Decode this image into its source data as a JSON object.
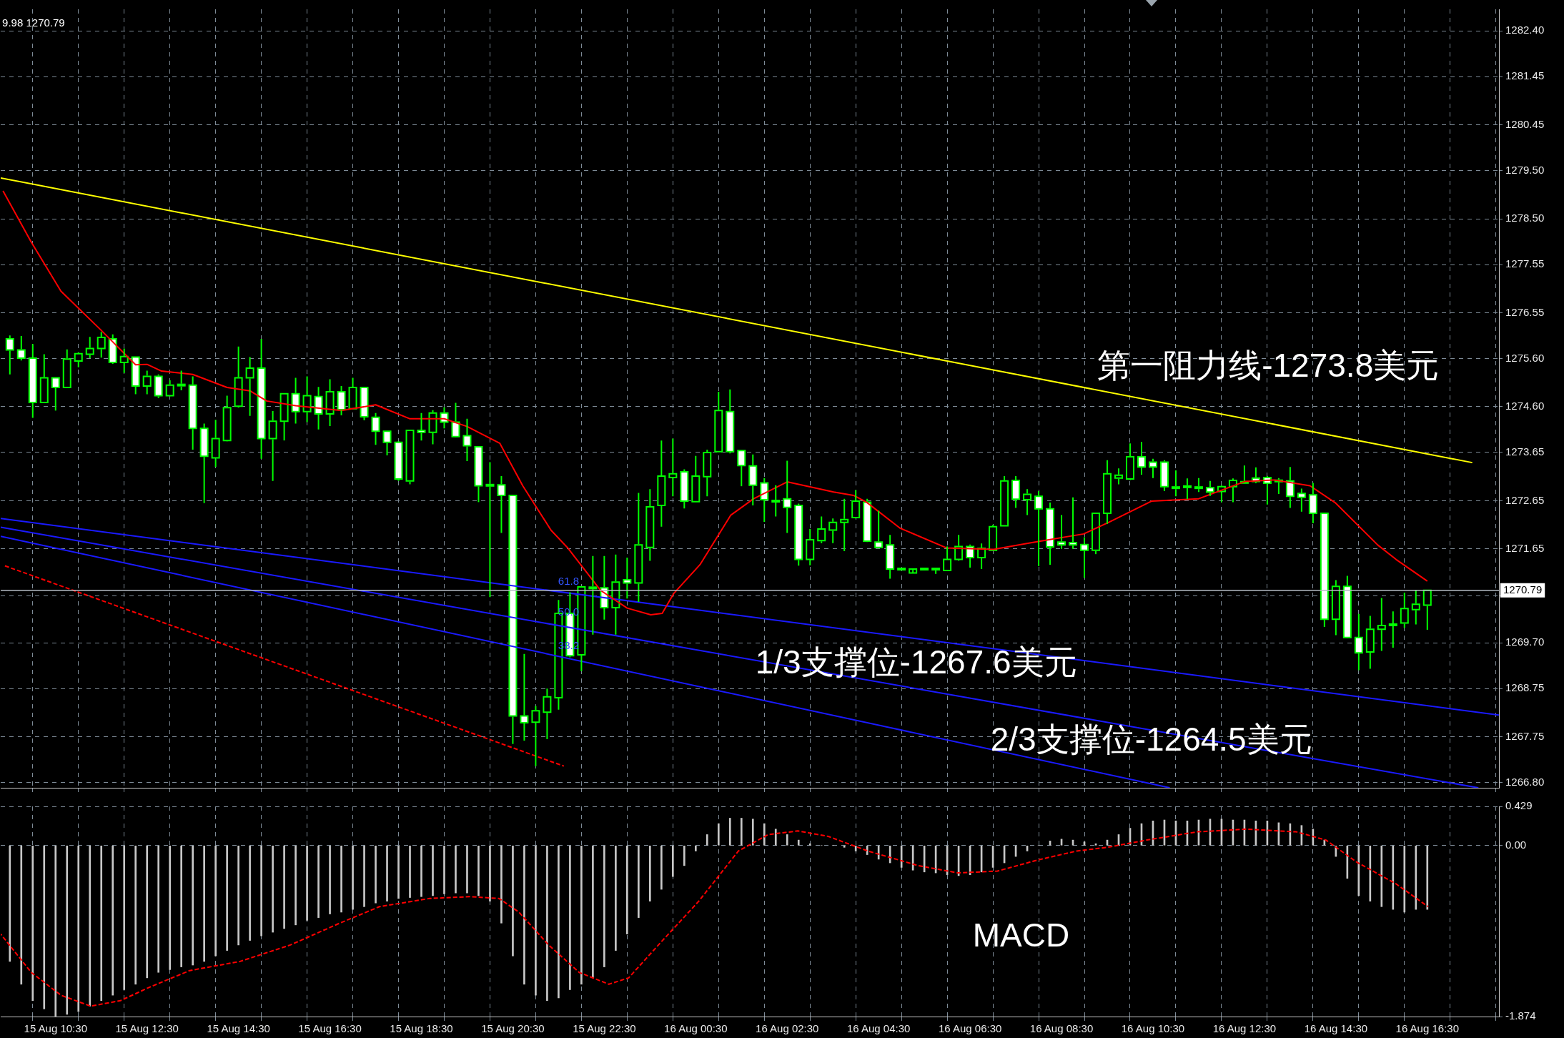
{
  "chart_data": [
    {
      "type": "candlestick",
      "color": "#00ff00",
      "marker": "none",
      "grid": true,
      "tick_labels": "y",
      "x": [
        "--08-15T09:30",
        "--08-15T09:45",
        "--08-15T10:00",
        "--08-15T10:15",
        "--08-15T10:30",
        "--08-15T10:45",
        "--08-15T11:00",
        "--08-15T11:15",
        "--08-15T11:30",
        "--08-15T11:45",
        "--08-15T12:00",
        "--08-15T12:15",
        "--08-15T12:30",
        "--08-15T12:45",
        "--08-15T13:00",
        "--08-15T13:15",
        "--08-15T13:30",
        "--08-15T13:45",
        "--08-15T14:00",
        "--08-15T14:15",
        "--08-15T14:30",
        "--08-15T14:45",
        "--08-15T15:00",
        "--08-15T15:15",
        "--08-15T15:30",
        "--08-15T15:45",
        "--08-15T16:00",
        "--08-15T16:15",
        "--08-15T16:30",
        "--08-15T16:45",
        "--08-15T17:00",
        "--08-15T17:15",
        "--08-15T17:30",
        "--08-15T17:45",
        "--08-15T18:00",
        "--08-15T18:15",
        "--08-15T18:30",
        "--08-15T18:45",
        "--08-15T19:00",
        "--08-15T19:15",
        "--08-15T19:30",
        "--08-15T19:45",
        "--08-15T20:00",
        "--08-15T20:15",
        "--08-15T20:30",
        "--08-15T20:45",
        "--08-15T21:00",
        "--08-15T21:15",
        "--08-15T21:30",
        "--08-15T21:45",
        "--08-15T22:00",
        "--08-15T22:15",
        "--08-15T22:30",
        "--08-15T22:45",
        "--08-15T23:00",
        "--08-15T23:15",
        "--08-15T23:30",
        "--08-15T23:45",
        "--08-16T00:00",
        "--08-16T00:15",
        "--08-16T00:30",
        "--08-16T00:45",
        "--08-16T01:00",
        "--08-16T01:15",
        "--08-16T01:30",
        "--08-16T01:45",
        "--08-16T02:00",
        "--08-16T02:15",
        "--08-16T02:30",
        "--08-16T02:45",
        "--08-16T03:00",
        "--08-16T03:15",
        "--08-16T03:30",
        "--08-16T03:45",
        "--08-16T04:00",
        "--08-16T04:15",
        "--08-16T04:30",
        "--08-16T04:45",
        "--08-16T05:00",
        "--08-16T05:15",
        "--08-16T05:30",
        "--08-16T05:45",
        "--08-16T06:00",
        "--08-16T06:15",
        "--08-16T06:30",
        "--08-16T06:45",
        "--08-16T07:00",
        "--08-16T07:15",
        "--08-16T07:30",
        "--08-16T07:45",
        "--08-16T08:00",
        "--08-16T08:15",
        "--08-16T08:30",
        "--08-16T08:45",
        "--08-16T09:00",
        "--08-16T09:15",
        "--08-16T09:30",
        "--08-16T09:45",
        "--08-16T10:00",
        "--08-16T10:15",
        "--08-16T10:30",
        "--08-16T10:45",
        "--08-16T11:00",
        "--08-16T11:15",
        "--08-16T11:30",
        "--08-16T11:45",
        "--08-16T12:00",
        "--08-16T12:15",
        "--08-16T12:30",
        "--08-16T12:45",
        "--08-16T13:00",
        "--08-16T13:15",
        "--08-16T13:30",
        "--08-16T13:45",
        "--08-16T14:00",
        "--08-16T14:15",
        "--08-16T14:30",
        "--08-16T14:45",
        "--08-16T15:00",
        "--08-16T15:15",
        "--08-16T15:30",
        "--08-16T15:45",
        "--08-16T16:00",
        "--08-16T16:15",
        "--08-16T16:30"
      ],
      "ohlc": [
        [
          1276.01,
          1276.08,
          1275.27,
          1275.78
        ],
        [
          1275.78,
          1276.07,
          1275.56,
          1275.61
        ],
        [
          1275.61,
          1275.9,
          1274.37,
          1274.69
        ],
        [
          1274.69,
          1275.69,
          1274.69,
          1275.2
        ],
        [
          1275.2,
          1275.2,
          1274.52,
          1275.0
        ],
        [
          1275.0,
          1275.79,
          1275.0,
          1275.59
        ],
        [
          1275.55,
          1275.73,
          1275.42,
          1275.7
        ],
        [
          1275.69,
          1276.05,
          1275.61,
          1275.81
        ],
        [
          1275.81,
          1276.15,
          1275.62,
          1276.04
        ],
        [
          1276.01,
          1276.1,
          1275.49,
          1275.52
        ],
        [
          1275.52,
          1275.81,
          1275.3,
          1275.64
        ],
        [
          1275.63,
          1275.63,
          1274.86,
          1275.03
        ],
        [
          1275.03,
          1275.35,
          1274.86,
          1275.23
        ],
        [
          1275.23,
          1275.27,
          1274.78,
          1274.83
        ],
        [
          1274.83,
          1275.15,
          1274.81,
          1275.05
        ],
        [
          1275.05,
          1275.35,
          1274.94,
          1275.05
        ],
        [
          1275.05,
          1275.23,
          1273.71,
          1274.15
        ],
        [
          1274.15,
          1274.25,
          1272.6,
          1273.57
        ],
        [
          1273.54,
          1274.33,
          1273.35,
          1273.94
        ],
        [
          1273.9,
          1274.83,
          1273.88,
          1274.58
        ],
        [
          1274.61,
          1275.85,
          1274.58,
          1275.2
        ],
        [
          1275.2,
          1275.63,
          1274.41,
          1275.4
        ],
        [
          1275.4,
          1276.01,
          1273.52,
          1273.94
        ],
        [
          1273.94,
          1274.51,
          1273.06,
          1274.3
        ],
        [
          1274.3,
          1274.87,
          1273.9,
          1274.87
        ],
        [
          1274.87,
          1275.2,
          1274.25,
          1274.5
        ],
        [
          1274.5,
          1275.23,
          1274.28,
          1274.83
        ],
        [
          1274.81,
          1275.01,
          1274.13,
          1274.45
        ],
        [
          1274.45,
          1275.17,
          1274.2,
          1274.91
        ],
        [
          1274.91,
          1275.03,
          1274.42,
          1274.54
        ],
        [
          1274.56,
          1275.2,
          1274.56,
          1275.0
        ],
        [
          1275.0,
          1275.0,
          1274.32,
          1274.39
        ],
        [
          1274.38,
          1274.47,
          1273.81,
          1274.09
        ],
        [
          1274.09,
          1274.09,
          1273.59,
          1273.86
        ],
        [
          1273.86,
          1273.89,
          1273.06,
          1273.1
        ],
        [
          1273.06,
          1274.11,
          1272.99,
          1274.11
        ],
        [
          1274.11,
          1274.47,
          1273.9,
          1274.07
        ],
        [
          1274.07,
          1274.53,
          1273.82,
          1274.47
        ],
        [
          1274.47,
          1274.59,
          1274.15,
          1274.28
        ],
        [
          1274.28,
          1274.68,
          1273.97,
          1273.98
        ],
        [
          1274.0,
          1274.35,
          1273.47,
          1273.79
        ],
        [
          1273.77,
          1273.77,
          1272.62,
          1272.96
        ],
        [
          1272.97,
          1273.45,
          1270.65,
          1272.97
        ],
        [
          1272.98,
          1273.16,
          1271.98,
          1272.76
        ],
        [
          1272.76,
          1272.76,
          1267.6,
          1268.18
        ],
        [
          1268.18,
          1269.47,
          1267.67,
          1268.04
        ],
        [
          1268.05,
          1268.39,
          1267.14,
          1268.29
        ],
        [
          1268.26,
          1268.75,
          1267.7,
          1268.58
        ],
        [
          1268.56,
          1270.59,
          1268.31,
          1270.31
        ],
        [
          1270.31,
          1270.75,
          1269.4,
          1269.43
        ],
        [
          1269.45,
          1270.86,
          1269.11,
          1270.86
        ],
        [
          1270.84,
          1271.5,
          1269.87,
          1270.84
        ],
        [
          1270.84,
          1271.5,
          1270.18,
          1270.43
        ],
        [
          1270.43,
          1271.53,
          1269.87,
          1270.96
        ],
        [
          1271.01,
          1271.47,
          1270.62,
          1270.94
        ],
        [
          1270.94,
          1272.81,
          1270.55,
          1271.73
        ],
        [
          1271.68,
          1272.89,
          1271.4,
          1272.52
        ],
        [
          1272.55,
          1273.9,
          1272.11,
          1273.16
        ],
        [
          1273.13,
          1273.94,
          1272.74,
          1273.21
        ],
        [
          1273.25,
          1273.3,
          1272.49,
          1272.64
        ],
        [
          1272.63,
          1273.58,
          1272.63,
          1273.16
        ],
        [
          1273.15,
          1273.71,
          1272.74,
          1273.65
        ],
        [
          1273.67,
          1274.91,
          1273.67,
          1274.52
        ],
        [
          1274.5,
          1274.96,
          1273.63,
          1273.67
        ],
        [
          1273.69,
          1273.69,
          1272.95,
          1273.38
        ],
        [
          1273.37,
          1273.61,
          1272.55,
          1272.97
        ],
        [
          1273.02,
          1273.12,
          1272.21,
          1272.67
        ],
        [
          1272.64,
          1272.97,
          1272.32,
          1272.64
        ],
        [
          1272.69,
          1273.48,
          1271.98,
          1272.51
        ],
        [
          1272.55,
          1272.59,
          1271.3,
          1271.43
        ],
        [
          1271.43,
          1272.06,
          1271.31,
          1271.84
        ],
        [
          1271.82,
          1272.32,
          1271.77,
          1272.06
        ],
        [
          1272.04,
          1272.28,
          1271.77,
          1272.2
        ],
        [
          1272.2,
          1272.69,
          1271.6,
          1272.26
        ],
        [
          1272.3,
          1272.87,
          1272.28,
          1272.64
        ],
        [
          1272.62,
          1272.69,
          1271.79,
          1271.81
        ],
        [
          1271.79,
          1272.44,
          1271.67,
          1271.68
        ],
        [
          1271.73,
          1271.94,
          1271.03,
          1271.23
        ],
        [
          1271.23,
          1271.23,
          1271.23,
          1271.23
        ],
        [
          1271.15,
          1271.23,
          1271.15,
          1271.23
        ],
        [
          1271.23,
          1271.23,
          1271.23,
          1271.23
        ],
        [
          1271.23,
          1271.23,
          1271.13,
          1271.23
        ],
        [
          1271.2,
          1271.7,
          1271.2,
          1271.43
        ],
        [
          1271.43,
          1271.94,
          1271.4,
          1271.7
        ],
        [
          1271.7,
          1271.74,
          1271.26,
          1271.47
        ],
        [
          1271.47,
          1271.76,
          1271.23,
          1271.66
        ],
        [
          1271.62,
          1272.15,
          1271.6,
          1272.11
        ],
        [
          1272.13,
          1273.16,
          1272.13,
          1273.06
        ],
        [
          1273.07,
          1273.16,
          1272.5,
          1272.68
        ],
        [
          1272.67,
          1272.89,
          1272.35,
          1272.78
        ],
        [
          1272.74,
          1272.85,
          1271.29,
          1272.48
        ],
        [
          1272.48,
          1272.61,
          1271.32,
          1271.69
        ],
        [
          1271.79,
          1272.35,
          1271.65,
          1271.73
        ],
        [
          1271.78,
          1272.72,
          1271.65,
          1271.73
        ],
        [
          1271.74,
          1271.89,
          1271.05,
          1271.62
        ],
        [
          1271.62,
          1272.39,
          1271.54,
          1272.39
        ],
        [
          1272.39,
          1273.49,
          1272.17,
          1273.21
        ],
        [
          1273.12,
          1273.32,
          1272.99,
          1273.18
        ],
        [
          1273.1,
          1273.84,
          1273.08,
          1273.56
        ],
        [
          1273.56,
          1273.87,
          1273.19,
          1273.35
        ],
        [
          1273.45,
          1273.52,
          1273.12,
          1273.35
        ],
        [
          1273.45,
          1273.49,
          1272.85,
          1272.94
        ],
        [
          1272.92,
          1273.28,
          1272.74,
          1272.92
        ],
        [
          1272.94,
          1273.11,
          1272.68,
          1272.94
        ],
        [
          1272.92,
          1273.12,
          1272.83,
          1272.92
        ],
        [
          1272.92,
          1273.06,
          1272.75,
          1272.83
        ],
        [
          1272.84,
          1272.97,
          1272.62,
          1272.94
        ],
        [
          1272.94,
          1273.11,
          1272.62,
          1273.07
        ],
        [
          1273.03,
          1273.38,
          1273.01,
          1273.03
        ],
        [
          1273.12,
          1273.34,
          1273.01,
          1273.05
        ],
        [
          1273.13,
          1273.16,
          1272.57,
          1273.01
        ],
        [
          1273.06,
          1273.12,
          1272.79,
          1273.06
        ],
        [
          1273.06,
          1273.35,
          1272.5,
          1272.74
        ],
        [
          1272.8,
          1272.9,
          1272.42,
          1272.72
        ],
        [
          1272.77,
          1273.02,
          1272.18,
          1272.39
        ],
        [
          1272.39,
          1272.39,
          1270.03,
          1270.19
        ],
        [
          1270.19,
          1271.0,
          1269.86,
          1270.87
        ],
        [
          1270.87,
          1271.09,
          1269.79,
          1269.81
        ],
        [
          1269.81,
          1270.3,
          1269.13,
          1269.49
        ],
        [
          1269.51,
          1270.26,
          1269.16,
          1269.98
        ],
        [
          1269.98,
          1270.63,
          1269.53,
          1270.06
        ],
        [
          1270.06,
          1270.35,
          1269.6,
          1270.09
        ],
        [
          1270.11,
          1270.74,
          1270.01,
          1270.41
        ],
        [
          1270.39,
          1270.79,
          1270.08,
          1270.5
        ],
        [
          1270.48,
          1270.79,
          1269.97,
          1270.79
        ]
      ],
      "series": [
        {
          "type": "line",
          "color": "#ff0000",
          "x": [
            "--08-15T09:21",
            "--08-15T09:58",
            "--08-15T10:37",
            "--08-15T11:29",
            "--08-15T12:15",
            "--08-15T12:30",
            "--08-15T12:49",
            "--08-15T13:30",
            "--08-15T14:15",
            "--08-15T14:45",
            "--08-15T15:07",
            "--08-15T15:45",
            "--08-15T16:45",
            "--08-15T17:30",
            "--08-15T18:15",
            "--08-15T19:00",
            "--08-15T19:30",
            "--08-15T20:13",
            "--08-15T20:43",
            "--08-15T21:20",
            "--08-15T21:42",
            "--08-15T22:25",
            "--08-15T23:00",
            "--08-15T23:31",
            "--08-15T23:46",
            "--08-16T00:01",
            "--08-16T00:36",
            "--08-16T01:16",
            "--08-16T01:46",
            "--08-16T02:30",
            "--08-16T03:31",
            "--08-16T03:57",
            "--08-16T04:14",
            "--08-16T04:58",
            "--08-16T05:59",
            "--08-16T07:01",
            "--08-16T07:58",
            "--08-16T08:59",
            "--08-16T09:32",
            "--08-16T10:28",
            "--08-16T11:30",
            "--08-16T12:31",
            "--08-16T13:09",
            "--08-16T13:56",
            "--08-16T14:29",
            "--08-16T15:25",
            "--08-16T15:49",
            "--08-16T16:30"
          ],
          "values": [
            1279.08,
            1278.02,
            1277.0,
            1276.2,
            1275.47,
            1275.48,
            1275.34,
            1275.27,
            1275.0,
            1274.93,
            1274.72,
            1274.62,
            1274.52,
            1274.64,
            1274.35,
            1274.35,
            1274.19,
            1273.84,
            1272.96,
            1272.04,
            1271.67,
            1270.79,
            1270.42,
            1270.28,
            1270.31,
            1270.72,
            1271.33,
            1272.35,
            1272.69,
            1273.04,
            1272.83,
            1272.76,
            1272.62,
            1272.08,
            1271.67,
            1271.64,
            1271.8,
            1271.96,
            1272.2,
            1272.64,
            1272.69,
            1273.05,
            1273.08,
            1272.96,
            1272.61,
            1271.73,
            1271.43,
            1270.98
          ]
        },
        {
          "type": "line",
          "color": "#ffff00",
          "x": [
            "--08-15T09:18",
            "--08-16T17:29"
          ],
          "values": [
            1279.35,
            1273.44
          ]
        },
        {
          "type": "line",
          "color": "#1a1aff",
          "x": [
            "--08-15T09:18",
            "--08-16T18:04"
          ],
          "values": [
            1272.28,
            1268.2
          ]
        },
        {
          "type": "line",
          "color": "#1a1aff",
          "x": [
            "--08-15T09:18",
            "--08-16T17:37"
          ],
          "values": [
            1272.1,
            1266.69
          ]
        },
        {
          "type": "line",
          "color": "#1a1aff",
          "x": [
            "--08-15T09:18",
            "--08-16T10:52"
          ],
          "values": [
            1271.91,
            1266.69
          ]
        },
        {
          "type": "line",
          "color": "#ff0000",
          "line_style": "dashed",
          "x": [
            "--08-15T09:23",
            "--08-15T21:37"
          ],
          "values": [
            1271.3,
            1267.14
          ]
        }
      ],
      "xlim": [
        "--08-15T09:18",
        "--08-16T18:04"
      ],
      "xticks": [
        {
          "value": "--08-15T10:30",
          "label": "15 Aug 10:30"
        },
        {
          "value": "--08-15T12:30",
          "label": "15 Aug 12:30"
        },
        {
          "value": "--08-15T14:30",
          "label": "15 Aug 14:30"
        },
        {
          "value": "--08-15T16:30",
          "label": "15 Aug 16:30"
        },
        {
          "value": "--08-15T18:30",
          "label": "15 Aug 18:30"
        },
        {
          "value": "--08-15T20:30",
          "label": "15 Aug 20:30"
        },
        {
          "value": "--08-15T22:30",
          "label": "15 Aug 22:30"
        },
        {
          "value": "--08-16T00:30",
          "label": "16 Aug 00:30"
        },
        {
          "value": "--08-16T02:30",
          "label": "16 Aug 02:30"
        },
        {
          "value": "--08-16T04:30",
          "label": "16 Aug 04:30"
        },
        {
          "value": "--08-16T06:30",
          "label": "16 Aug 06:30"
        },
        {
          "value": "--08-16T08:30",
          "label": "16 Aug 08:30"
        },
        {
          "value": "--08-16T10:30",
          "label": "16 Aug 10:30"
        },
        {
          "value": "--08-16T12:30",
          "label": "16 Aug 12:30"
        },
        {
          "value": "--08-16T14:30",
          "label": "16 Aug 14:30"
        },
        {
          "value": "--08-16T16:30",
          "label": "16 Aug 16:30"
        }
      ],
      "ylim": [
        1266.69,
        1282.85
      ],
      "yticks": [
        {
          "value": 1282.4,
          "label": "1282.40"
        },
        1281.45,
        1280.45,
        {
          "value": 1279.5,
          "label": "1279.50"
        },
        {
          "value": 1278.5,
          "label": "1278.50"
        },
        1277.55,
        1276.55,
        {
          "value": 1275.6,
          "label": "1275.60"
        },
        {
          "value": 1274.6,
          "label": "1274.60"
        },
        1273.65,
        1272.65,
        1271.65,
        {
          "value": 1270.68,
          "label": null
        },
        {
          "value": 1269.7,
          "label": "1269.70"
        },
        1268.75,
        1267.75,
        {
          "value": 1266.8,
          "label": "1266.80"
        }
      ],
      "ref_lines": [
        {
          "axis": "y",
          "value": 1270.79,
          "label": "1270.79",
          "color": "#b4bcc4"
        }
      ],
      "annotations": [
        "第一阻力线-1273.8美元",
        "1/3支撑位-1267.6美元",
        "2/3支撑位-1264.5美元",
        "61.8",
        "50.0",
        "38.2",
        "9.98 1270.79"
      ]
    },
    {
      "type": "bar",
      "marker": "none",
      "grid": true,
      "x": [
        "--08-15T09:30",
        "--08-15T09:45",
        "--08-15T10:00",
        "--08-15T10:15",
        "--08-15T10:30",
        "--08-15T10:45",
        "--08-15T11:00",
        "--08-15T11:15",
        "--08-15T11:30",
        "--08-15T11:45",
        "--08-15T12:00",
        "--08-15T12:15",
        "--08-15T12:30",
        "--08-15T12:45",
        "--08-15T13:00",
        "--08-15T13:15",
        "--08-15T13:30",
        "--08-15T13:45",
        "--08-15T14:00",
        "--08-15T14:15",
        "--08-15T14:30",
        "--08-15T14:45",
        "--08-15T15:00",
        "--08-15T15:15",
        "--08-15T15:30",
        "--08-15T15:45",
        "--08-15T16:00",
        "--08-15T16:15",
        "--08-15T16:30",
        "--08-15T16:45",
        "--08-15T17:00",
        "--08-15T17:15",
        "--08-15T17:30",
        "--08-15T17:45",
        "--08-15T18:00",
        "--08-15T18:15",
        "--08-15T18:30",
        "--08-15T18:45",
        "--08-15T19:00",
        "--08-15T19:15",
        "--08-15T19:30",
        "--08-15T19:45",
        "--08-15T20:00",
        "--08-15T20:15",
        "--08-15T20:30",
        "--08-15T20:45",
        "--08-15T21:00",
        "--08-15T21:15",
        "--08-15T21:30",
        "--08-15T21:45",
        "--08-15T22:00",
        "--08-15T22:15",
        "--08-15T22:30",
        "--08-15T22:45",
        "--08-15T23:00",
        "--08-15T23:15",
        "--08-15T23:30",
        "--08-15T23:45",
        "--08-16T00:00",
        "--08-16T00:15",
        "--08-16T00:30",
        "--08-16T00:45",
        "--08-16T01:00",
        "--08-16T01:15",
        "--08-16T01:30",
        "--08-16T01:45",
        "--08-16T02:00",
        "--08-16T02:15",
        "--08-16T02:30",
        "--08-16T02:45",
        "--08-16T03:00",
        "--08-16T03:15",
        "--08-16T03:30",
        "--08-16T03:45",
        "--08-16T04:00",
        "--08-16T04:15",
        "--08-16T04:30",
        "--08-16T04:45",
        "--08-16T05:00",
        "--08-16T05:15",
        "--08-16T05:30",
        "--08-16T05:45",
        "--08-16T06:00",
        "--08-16T06:15",
        "--08-16T06:30",
        "--08-16T06:45",
        "--08-16T07:00",
        "--08-16T07:15",
        "--08-16T07:30",
        "--08-16T07:45",
        "--08-16T08:00",
        "--08-16T08:15",
        "--08-16T08:30",
        "--08-16T08:45",
        "--08-16T09:00",
        "--08-16T09:15",
        "--08-16T09:30",
        "--08-16T09:45",
        "--08-16T10:00",
        "--08-16T10:15",
        "--08-16T10:30",
        "--08-16T10:45",
        "--08-16T11:00",
        "--08-16T11:15",
        "--08-16T11:30",
        "--08-16T11:45",
        "--08-16T12:00",
        "--08-16T12:15",
        "--08-16T12:30",
        "--08-16T12:45",
        "--08-16T13:00",
        "--08-16T13:15",
        "--08-16T13:30",
        "--08-16T13:45",
        "--08-16T14:00",
        "--08-16T14:15",
        "--08-16T14:30",
        "--08-16T14:45",
        "--08-16T15:00",
        "--08-16T15:15",
        "--08-16T15:30",
        "--08-16T15:45",
        "--08-16T16:00",
        "--08-16T16:15",
        "--08-16T16:30"
      ],
      "series": [
        {
          "type": "bar",
          "color": "#c8c8c8",
          "values": [
            -1.27,
            -1.52,
            -1.7,
            -1.79,
            -1.87,
            -1.85,
            -1.82,
            -1.76,
            -1.7,
            -1.64,
            -1.58,
            -1.52,
            -1.45,
            -1.39,
            -1.36,
            -1.33,
            -1.31,
            -1.27,
            -1.21,
            -1.15,
            -1.09,
            -1.04,
            -0.99,
            -0.95,
            -0.91,
            -0.87,
            -0.82,
            -0.79,
            -0.75,
            -0.73,
            -0.7,
            -0.67,
            -0.63,
            -0.61,
            -0.58,
            -0.57,
            -0.56,
            -0.55,
            -0.53,
            -0.52,
            -0.52,
            -0.55,
            -0.61,
            -0.85,
            -1.21,
            -1.52,
            -1.64,
            -1.7,
            -1.67,
            -1.58,
            -1.52,
            -1.45,
            -1.33,
            -1.15,
            -0.97,
            -0.79,
            -0.61,
            -0.48,
            -0.34,
            -0.22,
            -0.06,
            0.12,
            0.24,
            0.3,
            0.3,
            0.29,
            0.24,
            0.18,
            0.12,
            0.06,
            0.02,
            0,
            0,
            -0.02,
            -0.06,
            -0.1,
            -0.15,
            -0.19,
            -0.24,
            -0.27,
            -0.29,
            -0.3,
            -0.32,
            -0.33,
            -0.32,
            -0.29,
            -0.24,
            -0.19,
            -0.12,
            -0.06,
            0,
            0.05,
            0.07,
            0.06,
            0.04,
            0.02,
            0.06,
            0.12,
            0.19,
            0.24,
            0.27,
            0.28,
            0.27,
            0.27,
            0.28,
            0.29,
            0.29,
            0.28,
            0.28,
            0.27,
            0.27,
            0.25,
            0.24,
            0.22,
            0.18,
            0.06,
            -0.12,
            -0.36,
            -0.55,
            -0.61,
            -0.67,
            -0.7,
            -0.73,
            -0.7,
            -0.7
          ]
        },
        {
          "type": "line",
          "color": "#ff0000",
          "line_style": "dashed",
          "x": [
            "--08-15T09:18",
            "--08-15T09:58",
            "--08-15T10:37",
            "--08-15T11:16",
            "--08-15T11:55",
            "--08-15T12:34",
            "--08-15T13:26",
            "--08-15T14:32",
            "--08-15T15:38",
            "--08-15T16:43",
            "--08-15T17:35",
            "--08-15T18:41",
            "--08-15T19:33",
            "--08-15T20:12",
            "--08-15T20:38",
            "--08-15T21:17",
            "--08-15T21:57",
            "--08-15T22:36",
            "--08-15T23:02",
            "--08-15T23:41",
            "--08-16T00:34",
            "--08-16T01:26",
            "--08-16T02:05",
            "--08-16T02:44",
            "--08-16T03:24",
            "--08-16T04:16",
            "--08-16T05:22",
            "--08-16T06:14",
            "--08-16T07:06",
            "--08-16T07:58",
            "--08-16T08:50",
            "--08-16T09:30",
            "--08-16T10:22",
            "--08-16T11:28",
            "--08-16T12:33",
            "--08-16T13:38",
            "--08-16T14:17",
            "--08-16T14:57",
            "--08-16T15:49",
            "--08-16T16:31"
          ],
          "values": [
            -0.97,
            -1.39,
            -1.64,
            -1.76,
            -1.7,
            -1.55,
            -1.37,
            -1.27,
            -1.09,
            -0.85,
            -0.67,
            -0.58,
            -0.56,
            -0.58,
            -0.73,
            -1.09,
            -1.39,
            -1.52,
            -1.45,
            -1.09,
            -0.61,
            -0.06,
            0.12,
            0.16,
            0.1,
            -0.06,
            -0.22,
            -0.3,
            -0.28,
            -0.16,
            -0.06,
            -0.02,
            0.06,
            0.15,
            0.18,
            0.15,
            0.06,
            -0.18,
            -0.42,
            -0.67
          ]
        }
      ],
      "xlim": [
        "--08-15T09:18",
        "--08-16T18:04"
      ],
      "xticks": [
        {
          "value": "--08-15T10:30",
          "label": "15 Aug 10:30"
        },
        {
          "value": "--08-15T12:30",
          "label": "15 Aug 12:30"
        },
        {
          "value": "--08-15T14:30",
          "label": "15 Aug 14:30"
        },
        {
          "value": "--08-15T16:30",
          "label": "15 Aug 16:30"
        },
        {
          "value": "--08-15T18:30",
          "label": "15 Aug 18:30"
        },
        {
          "value": "--08-15T20:30",
          "label": "15 Aug 20:30"
        },
        {
          "value": "--08-15T22:30",
          "label": "15 Aug 22:30"
        },
        {
          "value": "--08-16T00:30",
          "label": "16 Aug 00:30"
        },
        {
          "value": "--08-16T02:30",
          "label": "16 Aug 02:30"
        },
        {
          "value": "--08-16T04:30",
          "label": "16 Aug 04:30"
        },
        {
          "value": "--08-16T06:30",
          "label": "16 Aug 06:30"
        },
        {
          "value": "--08-16T08:30",
          "label": "16 Aug 08:30"
        },
        {
          "value": "--08-16T10:30",
          "label": "16 Aug 10:30"
        },
        {
          "value": "--08-16T12:30",
          "label": "16 Aug 12:30"
        },
        {
          "value": "--08-16T14:30",
          "label": "16 Aug 14:30"
        },
        {
          "value": "--08-16T16:30",
          "label": "16 Aug 16:30"
        }
      ],
      "ylim": [
        -1.874,
        0.429
      ],
      "yticks": [
        0.429,
        {
          "value": 0,
          "label": "0.00"
        },
        -1.874
      ],
      "annotations": [
        "MACD"
      ]
    }
  ]
}
